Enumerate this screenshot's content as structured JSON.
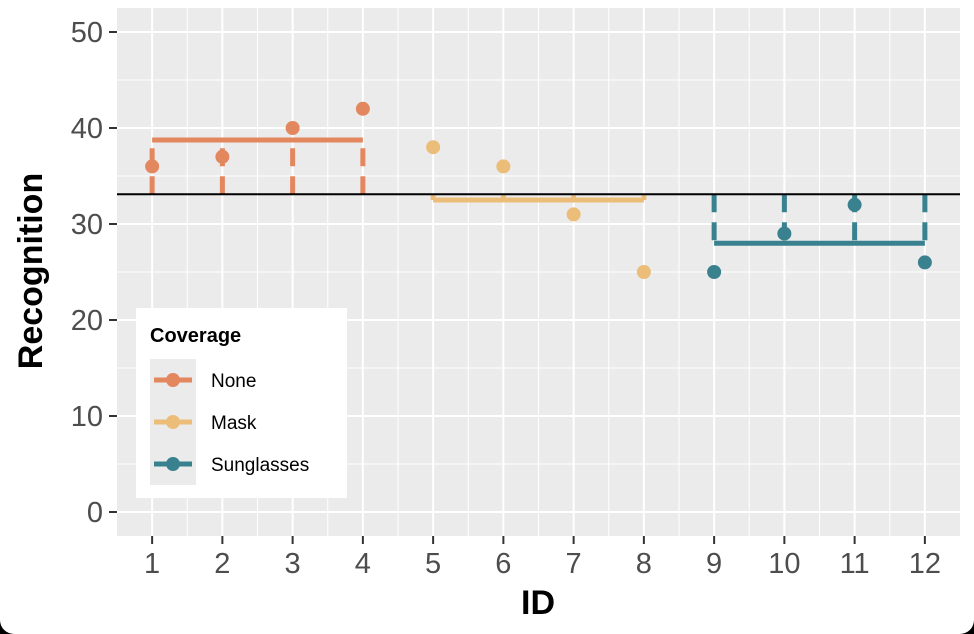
{
  "chart_data": {
    "type": "scatter",
    "title": "",
    "xlabel": "ID",
    "ylabel": "Recognition",
    "x_ticks": [
      "1",
      "2",
      "3",
      "4",
      "5",
      "6",
      "7",
      "8",
      "9",
      "10",
      "11",
      "12"
    ],
    "y_ticks": [
      "0",
      "10",
      "20",
      "30",
      "40",
      "50"
    ],
    "xlim": [
      0.5,
      12.5
    ],
    "ylim": [
      -2.5,
      52.5
    ],
    "grid": true,
    "overall_mean": 33.1,
    "legend": {
      "title": "Coverage",
      "position": "bottom-left"
    },
    "series": [
      {
        "name": "None",
        "color": "#E2875E",
        "x": [
          1,
          2,
          3,
          4
        ],
        "values": [
          36,
          37,
          40,
          42
        ],
        "group_mean": 38.75
      },
      {
        "name": "Mask",
        "color": "#EBBD78",
        "x": [
          5,
          6,
          7,
          8
        ],
        "values": [
          38,
          36,
          31,
          25
        ],
        "group_mean": 32.5
      },
      {
        "name": "Sunglasses",
        "color": "#3A8190",
        "x": [
          9,
          10,
          11,
          12
        ],
        "values": [
          25,
          29,
          32,
          26
        ],
        "group_mean": 28.0
      }
    ]
  }
}
